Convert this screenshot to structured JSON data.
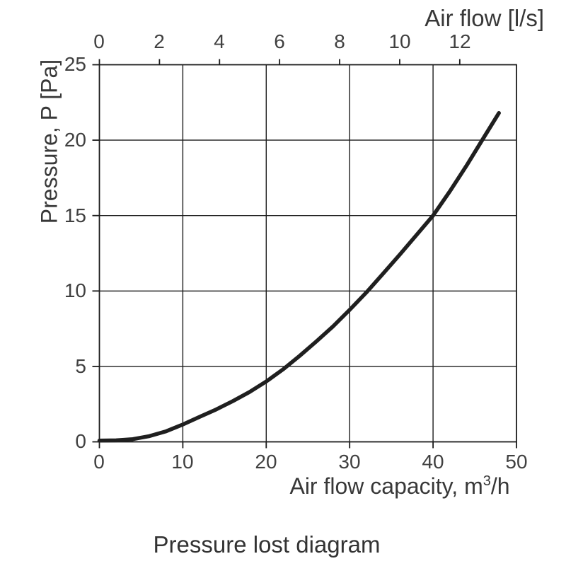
{
  "caption": "Pressure lost diagram",
  "chart_data": {
    "type": "line",
    "title": "Pressure lost diagram",
    "grid": {
      "show": true,
      "x_values": [
        10,
        20,
        30,
        40
      ],
      "y_values": [
        5,
        10,
        15,
        20
      ]
    },
    "top_axis": {
      "label": "Air flow [l/s]",
      "ticks": [
        0,
        2,
        4,
        6,
        8,
        10,
        12
      ],
      "scale_to_bottom": 3.6
    },
    "bottom_axis": {
      "label": "Air flow capacity, m³/h",
      "label_parts": {
        "main": "Air flow capacity, m",
        "sup": "3",
        "rest": "/h"
      },
      "ticks": [
        0,
        10,
        20,
        30,
        40,
        50
      ],
      "range": [
        0,
        50
      ]
    },
    "left_axis": {
      "label": "Pressure, P [Pa]",
      "ticks_top_to_bottom": [
        25,
        20,
        15,
        10,
        5,
        0
      ],
      "range": [
        0,
        25
      ]
    },
    "series": [
      {
        "name": "pressure-loss-curve",
        "color": "#1f1f1f",
        "points": [
          [
            0,
            0.08
          ],
          [
            2,
            0.1
          ],
          [
            4,
            0.18
          ],
          [
            6,
            0.38
          ],
          [
            8,
            0.7
          ],
          [
            10,
            1.15
          ],
          [
            12,
            1.65
          ],
          [
            14,
            2.15
          ],
          [
            16,
            2.7
          ],
          [
            18,
            3.3
          ],
          [
            20,
            4.0
          ],
          [
            22,
            4.8
          ],
          [
            24,
            5.7
          ],
          [
            26,
            6.65
          ],
          [
            28,
            7.65
          ],
          [
            30,
            8.75
          ],
          [
            32,
            9.9
          ],
          [
            34,
            11.15
          ],
          [
            36,
            12.4
          ],
          [
            38,
            13.7
          ],
          [
            40,
            15.0
          ],
          [
            42,
            16.6
          ],
          [
            44,
            18.3
          ],
          [
            46,
            20.1
          ],
          [
            47.9,
            21.8
          ]
        ]
      }
    ],
    "colors": {
      "line": "#1c1c1c",
      "grid": "#2a2a2a",
      "text": "#3b3b3b",
      "background": "#ffffff"
    }
  }
}
